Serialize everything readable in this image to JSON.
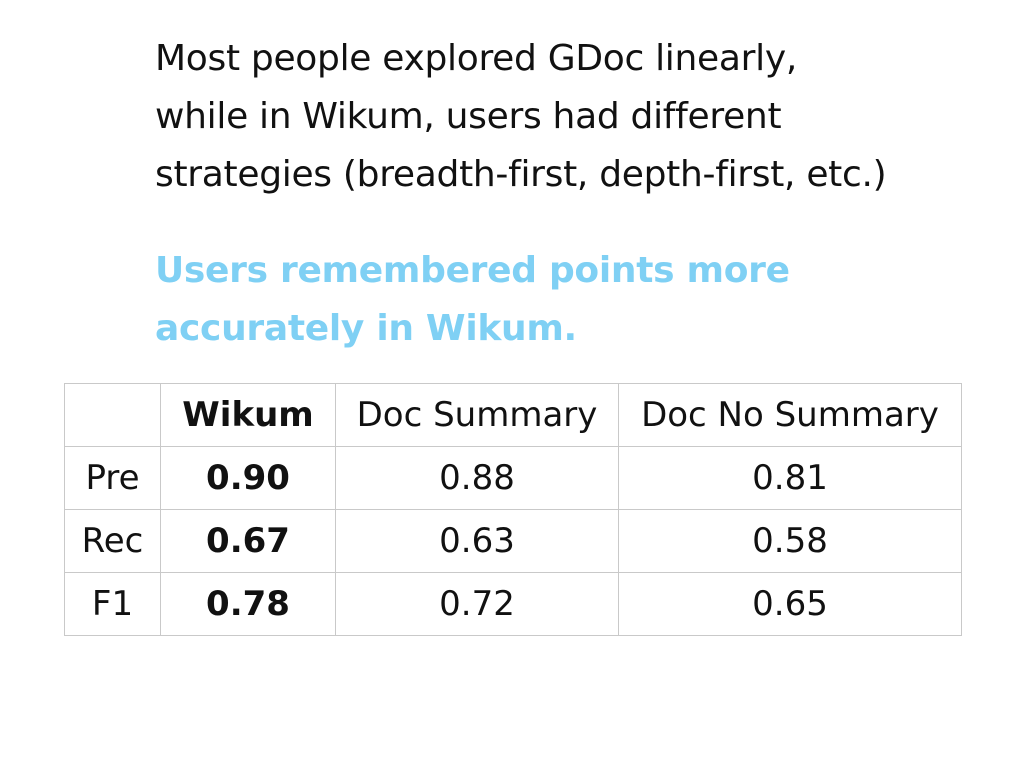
{
  "body_lines": [
    "Most people explored GDoc linearly,",
    "while in Wikum, users had different",
    "strategies (breadth-first, depth-first, etc.)"
  ],
  "highlight_lines": [
    "Users remembered points more",
    "accurately in Wikum."
  ],
  "highlight_color": "#7fd0f4",
  "table": {
    "headers": [
      "",
      "Wikum",
      "Doc Summary",
      "Doc No Summary"
    ],
    "rows": [
      [
        "Pre",
        "0.90",
        "0.88",
        "0.81"
      ],
      [
        "Rec",
        "0.67",
        "0.63",
        "0.58"
      ],
      [
        "F1",
        "0.78",
        "0.72",
        "0.65"
      ]
    ]
  }
}
